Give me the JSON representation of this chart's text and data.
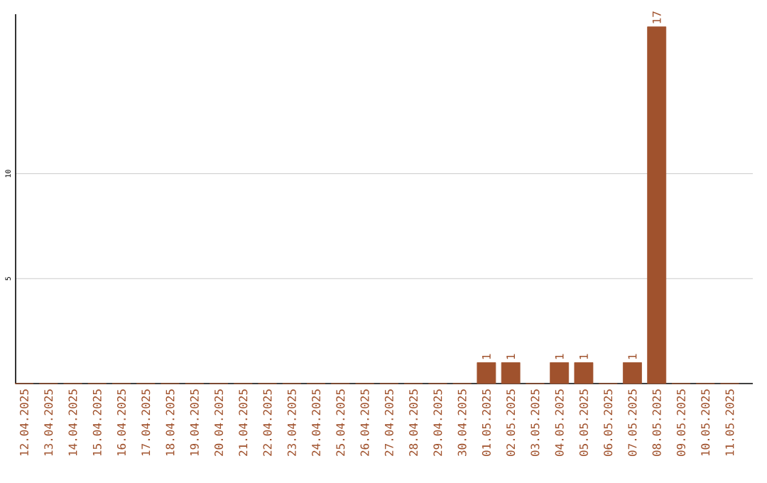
{
  "chart_data": {
    "type": "bar",
    "categories": [
      "12.04.2025",
      "13.04.2025",
      "14.04.2025",
      "15.04.2025",
      "16.04.2025",
      "17.04.2025",
      "18.04.2025",
      "19.04.2025",
      "20.04.2025",
      "21.04.2025",
      "22.04.2025",
      "23.04.2025",
      "24.04.2025",
      "25.04.2025",
      "26.04.2025",
      "27.04.2025",
      "28.04.2025",
      "29.04.2025",
      "30.04.2025",
      "01.05.2025",
      "02.05.2025",
      "03.05.2025",
      "04.05.2025",
      "05.05.2025",
      "06.05.2025",
      "07.05.2025",
      "08.05.2025",
      "09.05.2025",
      "10.05.2025",
      "11.05.2025"
    ],
    "values": [
      0,
      0,
      0,
      0,
      0,
      0,
      0,
      0,
      0,
      0,
      0,
      0,
      0,
      0,
      0,
      0,
      0,
      0,
      0,
      1,
      1,
      0,
      1,
      1,
      0,
      1,
      17,
      0,
      0,
      0
    ],
    "value_labels": [
      null,
      null,
      null,
      null,
      null,
      null,
      null,
      null,
      null,
      null,
      null,
      null,
      null,
      null,
      null,
      null,
      null,
      null,
      null,
      "1",
      "1",
      null,
      "1",
      "1",
      null,
      "1",
      "17",
      null,
      null,
      null
    ],
    "color": "#a0522d",
    "ylim": [
      0,
      17.6
    ],
    "yticks": [
      5,
      10
    ],
    "grid": "y"
  }
}
